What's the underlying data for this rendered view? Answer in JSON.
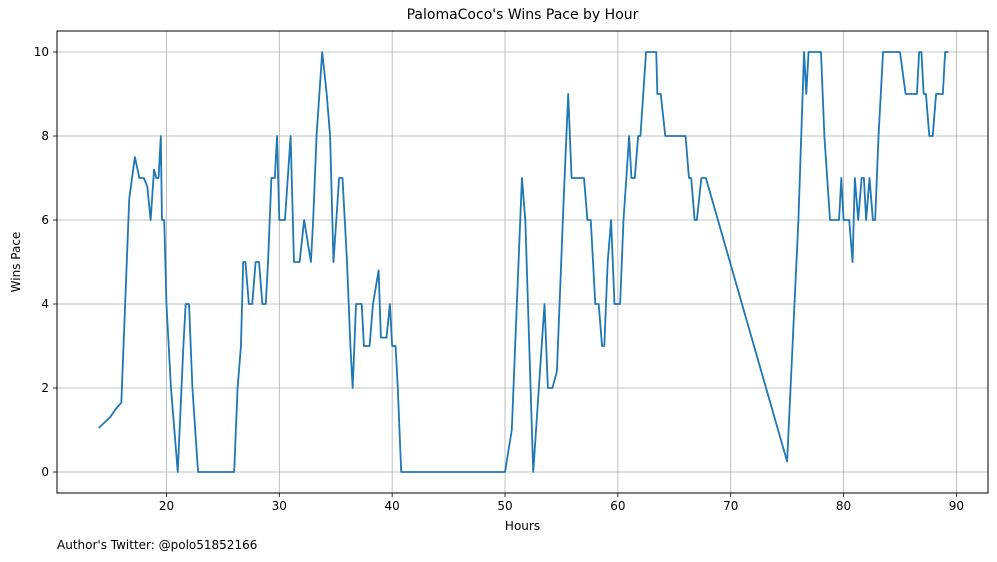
{
  "chart_data": {
    "type": "line",
    "title": "PalomaCoco's Wins Pace by Hour",
    "xlabel": "Hours",
    "ylabel": "Wins Pace",
    "xlim": [
      10.3,
      92.8
    ],
    "ylim": [
      -0.5,
      10.5
    ],
    "xticks": [
      20,
      30,
      40,
      50,
      60,
      70,
      80,
      90
    ],
    "yticks": [
      0,
      2,
      4,
      6,
      8,
      10
    ],
    "grid": true,
    "color": "#1f77b4",
    "series": [
      {
        "x": [
          14.0,
          15.0,
          15.5,
          16.0,
          16.7,
          17.2,
          17.6,
          18.0,
          18.3,
          18.6,
          18.9,
          19.1,
          19.3,
          19.5,
          19.6,
          19.8,
          20.0,
          20.4,
          21.0,
          21.5,
          21.7,
          22.0,
          22.3,
          22.8,
          23.5,
          24.0,
          25.0,
          26.0,
          26.3,
          26.6,
          26.8,
          27.0,
          27.3,
          27.6,
          27.9,
          28.2,
          28.5,
          28.8,
          29.0,
          29.3,
          29.6,
          29.8,
          30.0,
          30.5,
          31.0,
          31.3,
          31.8,
          32.2,
          32.8,
          33.0,
          33.3,
          33.8,
          34.2,
          34.5,
          34.8,
          35.3,
          35.6,
          36.0,
          36.3,
          36.5,
          36.8,
          37.3,
          37.5,
          37.8,
          38.0,
          38.3,
          38.8,
          39.0,
          39.5,
          39.8,
          40.0,
          40.3,
          40.5,
          40.8,
          41.0,
          41.2,
          41.3,
          45.0,
          50.0,
          50.6,
          51.5,
          51.8,
          52.5,
          53.0,
          53.5,
          53.8,
          54.2,
          54.6,
          55.2,
          55.6,
          55.9,
          56.2,
          57.0,
          57.3,
          57.6,
          58.0,
          58.3,
          58.6,
          58.8,
          59.1,
          59.4,
          59.7,
          60.2,
          60.5,
          61.0,
          61.2,
          61.5,
          61.8,
          62.0,
          62.5,
          62.8,
          63.4,
          63.5,
          63.8,
          64.2,
          65.0,
          66.0,
          66.3,
          66.5,
          66.8,
          67.0,
          67.4,
          67.8,
          75.0,
          76.0,
          76.5,
          76.7,
          76.9,
          77.1,
          77.5,
          78.0,
          78.3,
          78.8,
          79.2,
          79.6,
          79.8,
          80.0,
          80.2,
          80.5,
          80.8,
          81.0,
          81.3,
          81.6,
          81.8,
          82.0,
          82.3,
          82.6,
          82.8,
          83.1,
          83.5,
          84.0,
          84.4,
          85.0,
          85.5,
          86.0,
          86.5,
          86.7,
          86.9,
          87.1,
          87.3,
          87.6,
          87.9,
          88.2,
          88.5,
          88.8,
          89.0,
          89.3
        ],
        "values": [
          1.05,
          1.3,
          1.5,
          1.65,
          6.5,
          7.5,
          7.0,
          7.0,
          6.8,
          6.0,
          7.2,
          7.0,
          7.0,
          8.0,
          6.0,
          6.0,
          4.0,
          2.0,
          0.0,
          3.0,
          4.0,
          4.0,
          2.0,
          0.0,
          0.0,
          0.0,
          0.0,
          0.0,
          2.0,
          3.0,
          5.0,
          5.0,
          4.0,
          4.0,
          5.0,
          5.0,
          4.0,
          4.0,
          5.0,
          7.0,
          7.0,
          8.0,
          6.0,
          6.0,
          8.0,
          5.0,
          5.0,
          6.0,
          5.0,
          6.0,
          8.0,
          10.0,
          9.0,
          8.0,
          5.0,
          7.0,
          7.0,
          5.0,
          3.0,
          2.0,
          4.0,
          4.0,
          3.0,
          3.0,
          3.0,
          4.0,
          4.8,
          3.2,
          3.2,
          4.0,
          3.0,
          3.0,
          2.0,
          0.0,
          0.0,
          0.0,
          0.0,
          0.0,
          0.0,
          1.0,
          7.0,
          6.0,
          0.0,
          2.0,
          4.0,
          2.0,
          2.0,
          2.4,
          6.5,
          9.0,
          7.0,
          7.0,
          7.0,
          6.0,
          6.0,
          4.0,
          4.0,
          3.0,
          3.0,
          5.0,
          6.0,
          4.0,
          4.0,
          6.0,
          8.0,
          7.0,
          7.0,
          8.0,
          8.0,
          10.0,
          10.0,
          10.0,
          9.0,
          9.0,
          8.0,
          8.0,
          8.0,
          7.0,
          7.0,
          6.0,
          6.0,
          7.0,
          7.0,
          0.25,
          6.0,
          10.0,
          9.0,
          10.0,
          10.0,
          10.0,
          10.0,
          8.0,
          6.0,
          6.0,
          6.0,
          7.0,
          6.0,
          6.0,
          6.0,
          5.0,
          7.0,
          6.0,
          7.0,
          7.0,
          6.0,
          7.0,
          6.0,
          6.0,
          8.0,
          10.0,
          10.0,
          10.0,
          10.0,
          9.0,
          9.0,
          9.0,
          10.0,
          10.0,
          9.0,
          9.0,
          8.0,
          8.0,
          9.0,
          9.0,
          9.0,
          10.0,
          10.0
        ]
      }
    ]
  },
  "footnote": "Author's Twitter: @polo51852166"
}
